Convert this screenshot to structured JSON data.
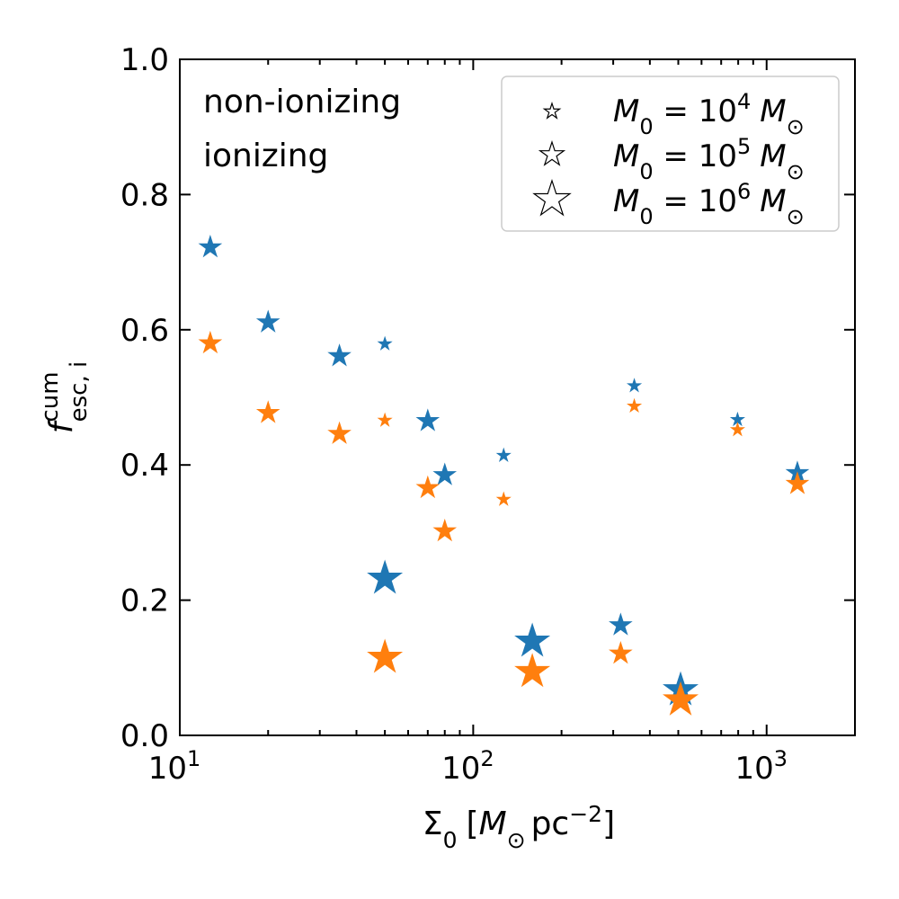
{
  "chart_data": {
    "type": "scatter",
    "title": "",
    "xscale": "log",
    "xlim": [
      10,
      2000
    ],
    "ylim": [
      0.0,
      1.0
    ],
    "xlabel": {
      "base": "Σ",
      "sub": "0",
      "units_open": "[",
      "msun": "M",
      "sun_sub": "⊙",
      "pc": "pc",
      "exp": "−2",
      "units_close": "]"
    },
    "ylabel": {
      "base": "f",
      "sup": "cum",
      "sub": "esc, i"
    },
    "xticks": [
      {
        "value": 10,
        "base": "10",
        "exp": "1"
      },
      {
        "value": 100,
        "base": "10",
        "exp": "2"
      },
      {
        "value": 1000,
        "base": "10",
        "exp": "3"
      }
    ],
    "yticks": [
      {
        "value": 0.0,
        "label": "0.0"
      },
      {
        "value": 0.2,
        "label": "0.2"
      },
      {
        "value": 0.4,
        "label": "0.4"
      },
      {
        "value": 0.6,
        "label": "0.6"
      },
      {
        "value": 0.8,
        "label": "0.8"
      },
      {
        "value": 1.0,
        "label": "1.0"
      }
    ],
    "series": [
      {
        "name": "non-ionizing",
        "color": "#1f77b4",
        "points": [
          {
            "x": 12.7,
            "y": 0.722,
            "mass": 5
          },
          {
            "x": 20,
            "y": 0.611,
            "mass": 5
          },
          {
            "x": 35,
            "y": 0.561,
            "mass": 5
          },
          {
            "x": 50,
            "y": 0.579,
            "mass": 4
          },
          {
            "x": 70,
            "y": 0.465,
            "mass": 5
          },
          {
            "x": 80,
            "y": 0.385,
            "mass": 5
          },
          {
            "x": 127,
            "y": 0.414,
            "mass": 4
          },
          {
            "x": 50,
            "y": 0.232,
            "mass": 6
          },
          {
            "x": 159,
            "y": 0.139,
            "mass": 6
          },
          {
            "x": 318,
            "y": 0.163,
            "mass": 5
          },
          {
            "x": 354,
            "y": 0.517,
            "mass": 4
          },
          {
            "x": 509,
            "y": 0.067,
            "mass": 6
          },
          {
            "x": 796,
            "y": 0.467,
            "mass": 4
          },
          {
            "x": 1273,
            "y": 0.388,
            "mass": 5
          }
        ]
      },
      {
        "name": "ionizing",
        "color": "#ff7f0e",
        "points": [
          {
            "x": 12.7,
            "y": 0.58,
            "mass": 5
          },
          {
            "x": 20,
            "y": 0.477,
            "mass": 5
          },
          {
            "x": 35,
            "y": 0.446,
            "mass": 5
          },
          {
            "x": 50,
            "y": 0.466,
            "mass": 4
          },
          {
            "x": 70,
            "y": 0.366,
            "mass": 5
          },
          {
            "x": 80,
            "y": 0.302,
            "mass": 5
          },
          {
            "x": 127,
            "y": 0.349,
            "mass": 4
          },
          {
            "x": 50,
            "y": 0.115,
            "mass": 6
          },
          {
            "x": 159,
            "y": 0.094,
            "mass": 6
          },
          {
            "x": 318,
            "y": 0.121,
            "mass": 5
          },
          {
            "x": 354,
            "y": 0.487,
            "mass": 4
          },
          {
            "x": 509,
            "y": 0.052,
            "mass": 6
          },
          {
            "x": 796,
            "y": 0.452,
            "mass": 4
          },
          {
            "x": 1273,
            "y": 0.372,
            "mass": 5
          }
        ]
      }
    ],
    "legend": {
      "location": "upper right",
      "entries": [
        {
          "mass": 4,
          "var": "M",
          "var_sub": "0",
          "eq": " = 10",
          "exp": "4",
          "unit": "M",
          "unit_sub": "⊙"
        },
        {
          "mass": 5,
          "var": "M",
          "var_sub": "0",
          "eq": " = 10",
          "exp": "5",
          "unit": "M",
          "unit_sub": "⊙"
        },
        {
          "mass": 6,
          "var": "M",
          "var_sub": "0",
          "eq": " = 10",
          "exp": "6",
          "unit": "M",
          "unit_sub": "⊙"
        }
      ]
    }
  }
}
